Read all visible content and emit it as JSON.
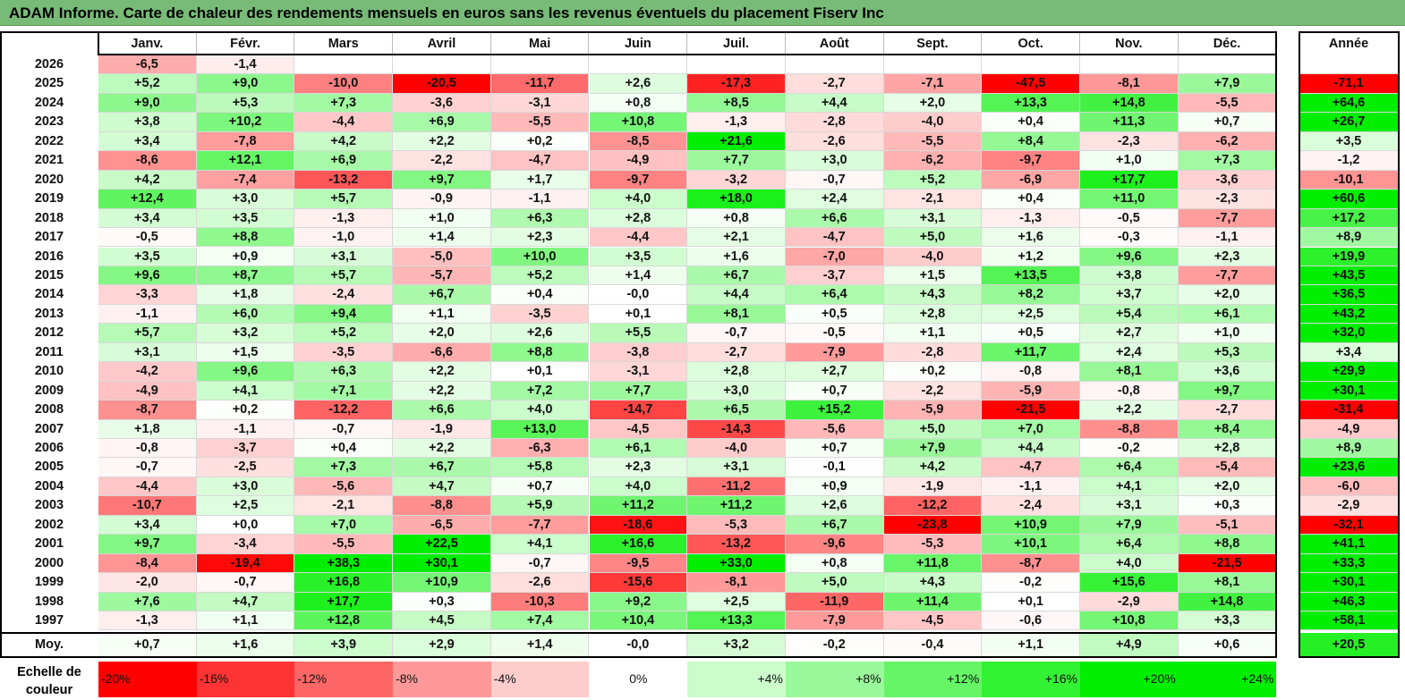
{
  "title": "ADAM Informe. Carte de chaleur des rendements mensuels en euros sans les revenus éventuels du placement Fiserv Inc",
  "chart_data": {
    "type": "heatmap",
    "columns": [
      "Janv.",
      "Févr.",
      "Mars",
      "Avril",
      "Mai",
      "Juin",
      "Juil.",
      "Août",
      "Sept.",
      "Oct.",
      "Nov.",
      "Déc."
    ],
    "year_column": "Année",
    "rows": [
      {
        "label": "2026",
        "values": [
          "-6,5",
          "-1,4",
          "",
          "",
          "",
          "",
          "",
          "",
          "",
          "",
          "",
          ""
        ],
        "year": ""
      },
      {
        "label": "2025",
        "values": [
          "+5,2",
          "+9,0",
          "-10,0",
          "-20,5",
          "-11,7",
          "+2,6",
          "-17,3",
          "-2,7",
          "-7,1",
          "-47,5",
          "-8,1",
          "+7,9"
        ],
        "year": "-71,1"
      },
      {
        "label": "2024",
        "values": [
          "+9,0",
          "+5,3",
          "+7,3",
          "-3,6",
          "-3,1",
          "+0,8",
          "+8,5",
          "+4,4",
          "+2,0",
          "+13,3",
          "+14,8",
          "-5,5"
        ],
        "year": "+64,6"
      },
      {
        "label": "2023",
        "values": [
          "+3,8",
          "+10,2",
          "-4,4",
          "+6,9",
          "-5,5",
          "+10,8",
          "-1,3",
          "-2,8",
          "-4,0",
          "+0,4",
          "+11,3",
          "+0,7"
        ],
        "year": "+26,7"
      },
      {
        "label": "2022",
        "values": [
          "+3,4",
          "-7,8",
          "+4,2",
          "+2,2",
          "+0,2",
          "-8,5",
          "+21,6",
          "-2,6",
          "-5,5",
          "+8,4",
          "-2,3",
          "-6,2"
        ],
        "year": "+3,5"
      },
      {
        "label": "2021",
        "values": [
          "-8,6",
          "+12,1",
          "+6,9",
          "-2,2",
          "-4,7",
          "-4,9",
          "+7,7",
          "+3,0",
          "-6,2",
          "-9,7",
          "+1,0",
          "+7,3"
        ],
        "year": "-1,2"
      },
      {
        "label": "2020",
        "values": [
          "+4,2",
          "-7,4",
          "-13,2",
          "+9,7",
          "+1,7",
          "-9,7",
          "-3,2",
          "-0,7",
          "+5,2",
          "-6,9",
          "+17,7",
          "-3,6"
        ],
        "year": "-10,1"
      },
      {
        "label": "2019",
        "values": [
          "+12,4",
          "+3,0",
          "+5,7",
          "-0,9",
          "-1,1",
          "+4,0",
          "+18,0",
          "+2,4",
          "-2,1",
          "+0,4",
          "+11,0",
          "-2,3"
        ],
        "year": "+60,6"
      },
      {
        "label": "2018",
        "values": [
          "+3,4",
          "+3,5",
          "-1,3",
          "+1,0",
          "+6,3",
          "+2,8",
          "+0,8",
          "+6,6",
          "+3,1",
          "-1,3",
          "-0,5",
          "-7,7"
        ],
        "year": "+17,2"
      },
      {
        "label": "2017",
        "values": [
          "-0,5",
          "+8,8",
          "-1,0",
          "+1,4",
          "+2,3",
          "-4,4",
          "+2,1",
          "-4,7",
          "+5,0",
          "+1,6",
          "-0,3",
          "-1,1"
        ],
        "year": "+8,9"
      },
      {
        "label": "2016",
        "values": [
          "+3,5",
          "+0,9",
          "+3,1",
          "-5,0",
          "+10,0",
          "+3,5",
          "+1,6",
          "-7,0",
          "-4,0",
          "+1,2",
          "+9,6",
          "+2,3"
        ],
        "year": "+19,9"
      },
      {
        "label": "2015",
        "values": [
          "+9,6",
          "+8,7",
          "+5,7",
          "-5,7",
          "+5,2",
          "+1,4",
          "+6,7",
          "-3,7",
          "+1,5",
          "+13,5",
          "+3,8",
          "-7,7"
        ],
        "year": "+43,5"
      },
      {
        "label": "2014",
        "values": [
          "-3,3",
          "+1,8",
          "-2,4",
          "+6,7",
          "+0,4",
          "-0,0",
          "+4,4",
          "+6,4",
          "+4,3",
          "+8,2",
          "+3,7",
          "+2,0"
        ],
        "year": "+36,5"
      },
      {
        "label": "2013",
        "values": [
          "-1,1",
          "+6,0",
          "+9,4",
          "+1,1",
          "-3,5",
          "+0,1",
          "+8,1",
          "+0,5",
          "+2,8",
          "+2,5",
          "+5,4",
          "+6,1"
        ],
        "year": "+43,2"
      },
      {
        "label": "2012",
        "values": [
          "+5,7",
          "+3,2",
          "+5,2",
          "+2,0",
          "+2,6",
          "+5,5",
          "-0,7",
          "-0,5",
          "+1,1",
          "+0,5",
          "+2,7",
          "+1,0"
        ],
        "year": "+32,0"
      },
      {
        "label": "2011",
        "values": [
          "+3,1",
          "+1,5",
          "-3,5",
          "-6,6",
          "+8,8",
          "-3,8",
          "-2,7",
          "-7,9",
          "-2,8",
          "+11,7",
          "+2,4",
          "+5,3"
        ],
        "year": "+3,4"
      },
      {
        "label": "2010",
        "values": [
          "-4,2",
          "+9,6",
          "+6,3",
          "+2,2",
          "+0,1",
          "-3,1",
          "+2,8",
          "+2,7",
          "+0,2",
          "-0,8",
          "+8,1",
          "+3,6"
        ],
        "year": "+29,9"
      },
      {
        "label": "2009",
        "values": [
          "-4,9",
          "+4,1",
          "+7,1",
          "+2,2",
          "+7,2",
          "+7,7",
          "+3,0",
          "+0,7",
          "-2,2",
          "-5,9",
          "-0,8",
          "+9,7"
        ],
        "year": "+30,1"
      },
      {
        "label": "2008",
        "values": [
          "-8,7",
          "+0,2",
          "-12,2",
          "+6,6",
          "+4,0",
          "-14,7",
          "+6,5",
          "+15,2",
          "-5,9",
          "-21,5",
          "+2,2",
          "-2,7"
        ],
        "year": "-31,4"
      },
      {
        "label": "2007",
        "values": [
          "+1,8",
          "-1,1",
          "-0,7",
          "-1,9",
          "+13,0",
          "-4,5",
          "-14,3",
          "-5,6",
          "+5,0",
          "+7,0",
          "-8,8",
          "+8,4"
        ],
        "year": "-4,9"
      },
      {
        "label": "2006",
        "values": [
          "-0,8",
          "-3,7",
          "+0,4",
          "+2,2",
          "-6,3",
          "+6,1",
          "-4,0",
          "+0,7",
          "+7,9",
          "+4,4",
          "-0,2",
          "+2,8"
        ],
        "year": "+8,9"
      },
      {
        "label": "2005",
        "values": [
          "-0,7",
          "-2,5",
          "+7,3",
          "+6,7",
          "+5,8",
          "+2,3",
          "+3,1",
          "-0,1",
          "+4,2",
          "-4,7",
          "+6,4",
          "-5,4"
        ],
        "year": "+23,6"
      },
      {
        "label": "2004",
        "values": [
          "-4,4",
          "+3,0",
          "-5,6",
          "+4,7",
          "+0,7",
          "+4,0",
          "-11,2",
          "+0,9",
          "-1,9",
          "-1,1",
          "+4,1",
          "+2,0"
        ],
        "year": "-6,0"
      },
      {
        "label": "2003",
        "values": [
          "-10,7",
          "+2,5",
          "-2,1",
          "-8,8",
          "+5,9",
          "+11,2",
          "+11,2",
          "+2,6",
          "-12,2",
          "-2,4",
          "+3,1",
          "+0,3"
        ],
        "year": "-2,9"
      },
      {
        "label": "2002",
        "values": [
          "+3,4",
          "+0,0",
          "+7,0",
          "-6,5",
          "-7,7",
          "-18,6",
          "-5,3",
          "+6,7",
          "-23,8",
          "+10,9",
          "+7,9",
          "-5,1"
        ],
        "year": "-32,1"
      },
      {
        "label": "2001",
        "values": [
          "+9,7",
          "-3,4",
          "-5,5",
          "+22,5",
          "+4,1",
          "+16,6",
          "-13,2",
          "-9,6",
          "-5,3",
          "+10,1",
          "+6,4",
          "+8,8"
        ],
        "year": "+41,1"
      },
      {
        "label": "2000",
        "values": [
          "-8,4",
          "-19,4",
          "+38,3",
          "+30,1",
          "-0,7",
          "-9,5",
          "+33,0",
          "+0,8",
          "+11,8",
          "-8,7",
          "+4,0",
          "-21,5"
        ],
        "year": "+33,3"
      },
      {
        "label": "1999",
        "values": [
          "-2,0",
          "-0,7",
          "+16,8",
          "+10,9",
          "-2,6",
          "-15,6",
          "-8,1",
          "+5,0",
          "+4,3",
          "-0,2",
          "+15,6",
          "+8,1"
        ],
        "year": "+30,1"
      },
      {
        "label": "1998",
        "values": [
          "+7,6",
          "+4,7",
          "+17,7",
          "+0,3",
          "-10,3",
          "+9,2",
          "+2,5",
          "-11,9",
          "+11,4",
          "+0,1",
          "-2,9",
          "+14,8"
        ],
        "year": "+46,3"
      },
      {
        "label": "1997",
        "values": [
          "-1,3",
          "+1,1",
          "+12,8",
          "+4,5",
          "+7,4",
          "+10,4",
          "+13,3",
          "-7,9",
          "-4,5",
          "-0,6",
          "+10,8",
          "+3,3"
        ],
        "year": "+58,1"
      }
    ],
    "average": {
      "label": "Moy.",
      "values": [
        "+0,7",
        "+1,6",
        "+3,9",
        "+2,9",
        "+1,4",
        "-0,0",
        "+3,2",
        "-0,2",
        "-0,4",
        "+1,1",
        "+4,9",
        "+0,6"
      ],
      "year": "+20,5"
    },
    "legend": {
      "label": "Echelle de couleur",
      "stops": [
        "-20%",
        "-16%",
        "-12%",
        "-8%",
        "-4%",
        "0%",
        "+4%",
        "+8%",
        "+12%",
        "+16%",
        "+20%",
        "+24%"
      ]
    }
  },
  "colors": {
    "title_bg": "#77bb77",
    "neg_max": "#ff0000",
    "pos_max": "#00ee00",
    "neutral": "#ffffff"
  }
}
